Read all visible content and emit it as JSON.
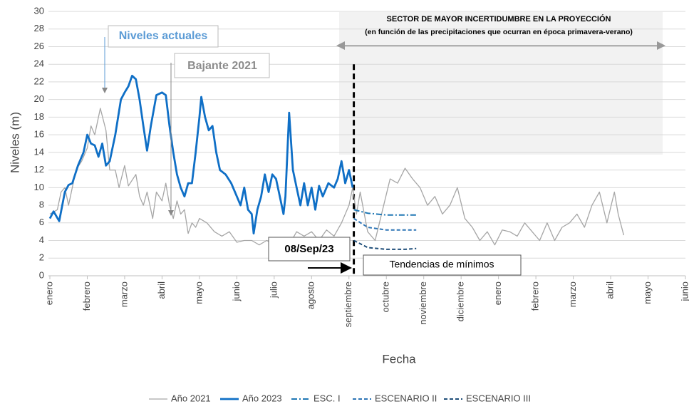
{
  "chart_data": {
    "type": "line",
    "xlabel": "Fecha",
    "ylabel": "Niveles (m)",
    "xlim": [
      0,
      17
    ],
    "ylim": [
      0,
      30
    ],
    "yticks": [
      0,
      2,
      4,
      6,
      8,
      10,
      12,
      14,
      16,
      18,
      20,
      22,
      24,
      26,
      28,
      30
    ],
    "xticks": [
      {
        "value": 0,
        "label": "enero"
      },
      {
        "value": 1,
        "label": "febrero"
      },
      {
        "value": 2,
        "label": "marzo"
      },
      {
        "value": 3,
        "label": "abril"
      },
      {
        "value": 4,
        "label": "mayo"
      },
      {
        "value": 5,
        "label": "junio"
      },
      {
        "value": 6,
        "label": "julio"
      },
      {
        "value": 7,
        "label": "agosto"
      },
      {
        "value": 8,
        "label": "septiembre"
      },
      {
        "value": 9,
        "label": "octubre"
      },
      {
        "value": 10,
        "label": "noviembre"
      },
      {
        "value": 11,
        "label": "diciembre"
      },
      {
        "value": 12,
        "label": "enero"
      },
      {
        "value": 13,
        "label": "febrero"
      },
      {
        "value": 14,
        "label": "marzo"
      },
      {
        "value": 15,
        "label": "abril"
      },
      {
        "value": 16,
        "label": "mayo"
      },
      {
        "value": 17,
        "label": "junio"
      }
    ],
    "grid": true,
    "legend": "bottom",
    "vline_x": 8.13,
    "annotations": {
      "sector_title": "SECTOR DE MAYOR INCERTIDUMBRE EN LA PROYECCIÓN",
      "sector_subtitle": "(en función de las precipitaciones que ocurran  en época primavera-verano)",
      "current": "Niveles actuales",
      "drop": "Bajante 2021",
      "date": "08/Sep/23",
      "trend": "Tendencias de mínimos"
    },
    "series": [
      {
        "name": "Año 2021",
        "color": "#a6a6a6",
        "style": "thin",
        "x": [
          0,
          0.2,
          0.3,
          0.4,
          0.5,
          0.7,
          0.85,
          1.0,
          1.1,
          1.2,
          1.35,
          1.5,
          1.6,
          1.75,
          1.85,
          2.0,
          2.1,
          2.3,
          2.4,
          2.5,
          2.6,
          2.75,
          2.85,
          3.0,
          3.1,
          3.2,
          3.3,
          3.4,
          3.5,
          3.6,
          3.7,
          3.8,
          3.9,
          4.0,
          4.2,
          4.4,
          4.6,
          4.8,
          5.0,
          5.2,
          5.4,
          5.6,
          5.8,
          6.0,
          6.2,
          6.4,
          6.6,
          6.8,
          7.0,
          7.2,
          7.4,
          7.6,
          7.8,
          8.0,
          8.1,
          8.2,
          8.3,
          8.5,
          8.7,
          8.9,
          9.1,
          9.3,
          9.5,
          9.7,
          9.9,
          10.1,
          10.3,
          10.5,
          10.7,
          10.9,
          11.1,
          11.3,
          11.5,
          11.7,
          11.9,
          12.1,
          12.3,
          12.5,
          12.7,
          12.9,
          13.1,
          13.3,
          13.5,
          13.7,
          13.9,
          14.1,
          14.3,
          14.5,
          14.7,
          14.9,
          15.1,
          15.2,
          15.35
        ],
        "values": [
          7,
          7.5,
          9.5,
          10,
          8,
          12,
          13,
          14.5,
          17,
          16,
          19,
          16.5,
          12,
          12,
          10,
          12.5,
          10.2,
          11.5,
          9,
          8,
          9.5,
          6.5,
          9.5,
          8.5,
          10.5,
          8,
          6.5,
          8.5,
          7,
          7.5,
          4.8,
          6,
          5.5,
          6.5,
          6,
          5,
          4.5,
          5,
          3.8,
          4,
          4,
          3.5,
          4,
          3.6,
          4.3,
          3.5,
          5,
          4.5,
          5,
          4,
          5.2,
          4.5,
          6,
          8,
          10,
          7,
          9.5,
          5,
          4,
          7.5,
          11,
          10.5,
          12.2,
          11,
          10,
          8,
          9,
          7,
          8,
          10,
          6.5,
          5.5,
          4,
          5,
          3.5,
          5.2,
          5,
          4.5,
          6,
          5,
          4,
          6,
          4,
          5.5,
          6,
          7,
          5.5,
          8,
          9.5,
          6,
          9.5,
          7,
          4.6
        ]
      },
      {
        "name": "Año 2023",
        "color": "#0f6fc6",
        "style": "thick",
        "x": [
          0,
          0.1,
          0.25,
          0.4,
          0.5,
          0.6,
          0.75,
          0.9,
          1.0,
          1.1,
          1.2,
          1.3,
          1.4,
          1.5,
          1.6,
          1.75,
          1.9,
          2.0,
          2.1,
          2.2,
          2.3,
          2.4,
          2.5,
          2.6,
          2.7,
          2.85,
          3.0,
          3.1,
          3.2,
          3.3,
          3.4,
          3.5,
          3.6,
          3.7,
          3.8,
          3.9,
          4.0,
          4.05,
          4.15,
          4.25,
          4.35,
          4.45,
          4.55,
          4.7,
          4.85,
          5.0,
          5.1,
          5.2,
          5.3,
          5.4,
          5.45,
          5.55,
          5.65,
          5.75,
          5.85,
          5.95,
          6.05,
          6.15,
          6.25,
          6.3,
          6.4,
          6.5,
          6.6,
          6.7,
          6.8,
          6.9,
          7.0,
          7.1,
          7.2,
          7.3,
          7.45,
          7.6,
          7.7,
          7.8,
          7.9,
          8.0,
          8.1
        ],
        "values": [
          6.5,
          7.3,
          6.2,
          9.5,
          10.3,
          10.5,
          12.5,
          14,
          16,
          15,
          14.8,
          13.5,
          15,
          12.5,
          13,
          16,
          20,
          20.8,
          21.5,
          22.7,
          22.3,
          20,
          17,
          14.2,
          17,
          20.5,
          20.8,
          20.5,
          17,
          14,
          11.5,
          10,
          9,
          10.5,
          10.5,
          14,
          18,
          20.3,
          18,
          16.5,
          17,
          14,
          12,
          11.5,
          10.5,
          9,
          8,
          10,
          7.5,
          7,
          4.8,
          7.5,
          9,
          11.5,
          9.5,
          11.5,
          11,
          9,
          7,
          9,
          18.5,
          12,
          10,
          8,
          10.5,
          8,
          10,
          7.5,
          10.2,
          9,
          10.5,
          10,
          11,
          13,
          10.5,
          12,
          10
        ]
      },
      {
        "name": "ESC. I",
        "color": "#1f77b4",
        "style": "dashdot",
        "x": [
          8.13,
          8.5,
          9,
          9.5,
          9.8
        ],
        "values": [
          7.5,
          7.1,
          6.9,
          6.9,
          6.9
        ]
      },
      {
        "name": "ESCENARIO II",
        "color": "#2e75b6",
        "style": "dashed",
        "x": [
          8.13,
          8.5,
          9,
          9.5,
          9.8
        ],
        "values": [
          6.5,
          5.5,
          5.2,
          5.2,
          5.2
        ]
      },
      {
        "name": "ESCENARIO III",
        "color": "#1f4e79",
        "style": "dashed",
        "x": [
          8.13,
          8.5,
          9,
          9.5,
          9.8
        ],
        "values": [
          4.0,
          3.2,
          3.0,
          3.0,
          3.1
        ]
      }
    ]
  }
}
